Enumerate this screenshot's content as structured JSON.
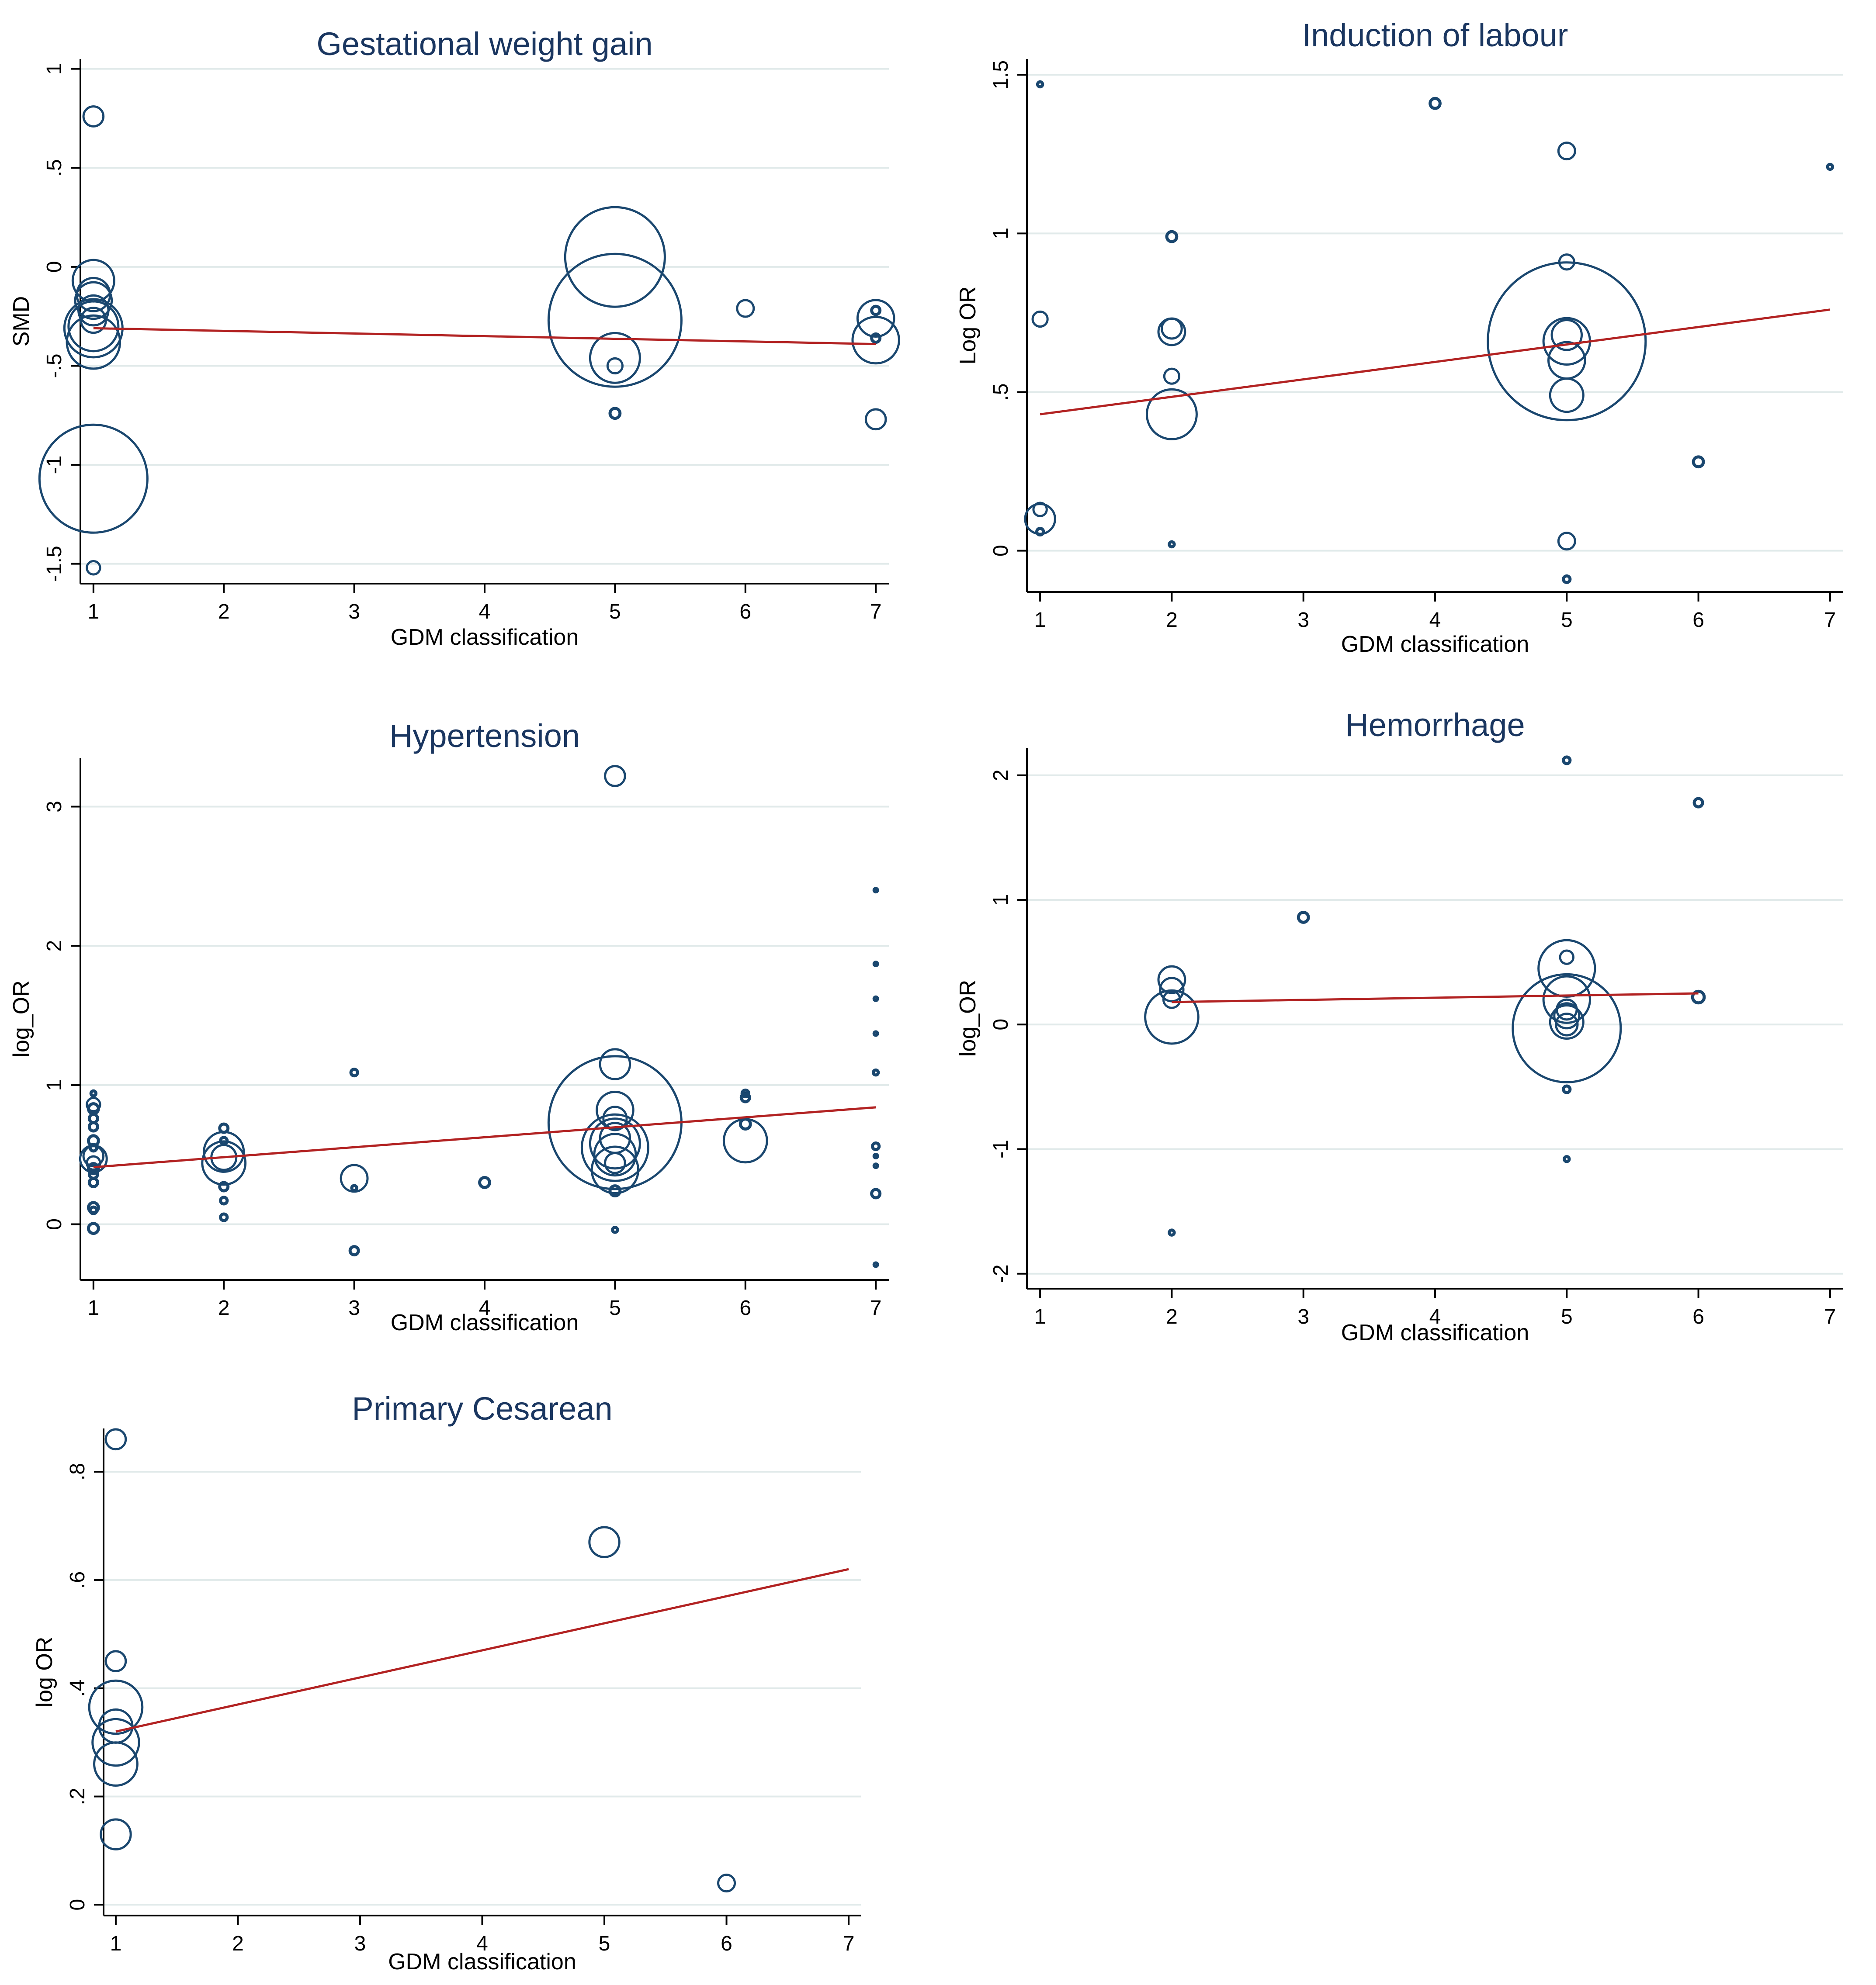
{
  "colors": {
    "marker": "#1a476f",
    "fit": "#b22222",
    "grid": "#e1eaea",
    "title": "#1a3660"
  },
  "chart_data": [
    {
      "type": "scatter",
      "title": "Gestational weight gain",
      "xlabel": "GDM classification",
      "ylabel": "SMD",
      "xlim": [
        0.9,
        7.1
      ],
      "ylim": [
        -1.6,
        1.05
      ],
      "xticks": [
        1,
        2,
        3,
        4,
        5,
        6,
        7
      ],
      "xtick_labels": [
        "1",
        "2",
        "3",
        "4",
        "5",
        "6",
        "7"
      ],
      "yticks": [
        -1.5,
        -1,
        -0.5,
        0,
        0.5,
        1
      ],
      "ytick_labels": [
        "-1.5",
        "-1",
        "-.5",
        "0",
        ".5",
        "1"
      ],
      "fit": {
        "x": [
          1,
          7
        ],
        "y": [
          -0.31,
          -0.39
        ]
      },
      "points": [
        {
          "x": 1,
          "y": 0.76,
          "w": 1.2
        },
        {
          "x": 1,
          "y": -0.07,
          "w": 2.5
        },
        {
          "x": 1,
          "y": -0.14,
          "w": 2.0
        },
        {
          "x": 1,
          "y": -0.17,
          "w": 2.2
        },
        {
          "x": 1,
          "y": -0.22,
          "w": 1.8
        },
        {
          "x": 1,
          "y": -0.27,
          "w": 1.5
        },
        {
          "x": 1,
          "y": -0.3,
          "w": 3.0
        },
        {
          "x": 1,
          "y": -0.31,
          "w": 3.5
        },
        {
          "x": 1,
          "y": -0.38,
          "w": 3.2
        },
        {
          "x": 1,
          "y": -1.07,
          "w": 6.5
        },
        {
          "x": 1,
          "y": -1.52,
          "w": 0.8
        },
        {
          "x": 5,
          "y": 0.05,
          "w": 6.0
        },
        {
          "x": 5,
          "y": -0.27,
          "w": 8.0
        },
        {
          "x": 5,
          "y": -0.46,
          "w": 3.0
        },
        {
          "x": 5,
          "y": -0.5,
          "w": 0.9
        },
        {
          "x": 5,
          "y": -0.74,
          "w": 0.6
        },
        {
          "x": 6,
          "y": -0.21,
          "w": 1.0
        },
        {
          "x": 7,
          "y": -0.22,
          "w": 0.5
        },
        {
          "x": 7,
          "y": -0.26,
          "w": 2.2
        },
        {
          "x": 7,
          "y": -0.36,
          "w": 0.5
        },
        {
          "x": 7,
          "y": -0.37,
          "w": 2.8
        },
        {
          "x": 7,
          "y": -0.77,
          "w": 1.2
        }
      ]
    },
    {
      "type": "scatter",
      "title": "Induction of labour",
      "xlabel": "GDM classification",
      "ylabel": "Log OR",
      "xlim": [
        0.9,
        7.1
      ],
      "ylim": [
        -0.13,
        1.55
      ],
      "xticks": [
        1,
        2,
        3,
        4,
        5,
        6,
        7
      ],
      "xtick_labels": [
        "1",
        "2",
        "3",
        "4",
        "5",
        "6",
        "7"
      ],
      "yticks": [
        0,
        0.5,
        1,
        1.5
      ],
      "ytick_labels": [
        "0",
        ".5",
        "1",
        "1.5"
      ],
      "fit": {
        "x": [
          1,
          7
        ],
        "y": [
          0.43,
          0.76
        ]
      },
      "points": [
        {
          "x": 1,
          "y": 1.47,
          "w": 0.3
        },
        {
          "x": 1,
          "y": 0.73,
          "w": 0.9
        },
        {
          "x": 1,
          "y": 0.13,
          "w": 0.8
        },
        {
          "x": 1,
          "y": 0.1,
          "w": 1.8
        },
        {
          "x": 1,
          "y": 0.06,
          "w": 0.4
        },
        {
          "x": 2,
          "y": 0.99,
          "w": 0.6
        },
        {
          "x": 2,
          "y": 0.7,
          "w": 1.2
        },
        {
          "x": 2,
          "y": 0.69,
          "w": 1.6
        },
        {
          "x": 2,
          "y": 0.55,
          "w": 0.9
        },
        {
          "x": 2,
          "y": 0.43,
          "w": 3.0
        },
        {
          "x": 2,
          "y": 0.02,
          "w": 0.3
        },
        {
          "x": 4,
          "y": 1.41,
          "w": 0.6
        },
        {
          "x": 5,
          "y": 1.26,
          "w": 1.0
        },
        {
          "x": 5,
          "y": 0.91,
          "w": 0.9
        },
        {
          "x": 5,
          "y": 0.68,
          "w": 1.8
        },
        {
          "x": 5,
          "y": 0.66,
          "w": 2.8
        },
        {
          "x": 5,
          "y": 0.66,
          "w": 9.5
        },
        {
          "x": 5,
          "y": 0.6,
          "w": 2.2
        },
        {
          "x": 5,
          "y": 0.49,
          "w": 2.0
        },
        {
          "x": 5,
          "y": 0.03,
          "w": 1.0
        },
        {
          "x": 5,
          "y": -0.09,
          "w": 0.4
        },
        {
          "x": 6,
          "y": 0.28,
          "w": 0.6
        },
        {
          "x": 7,
          "y": 1.21,
          "w": 0.3
        }
      ]
    },
    {
      "type": "scatter",
      "title": "Hypertension",
      "xlabel": "GDM classification",
      "ylabel": "log_OR",
      "xlim": [
        0.9,
        7.1
      ],
      "ylim": [
        -0.4,
        3.35
      ],
      "xticks": [
        1,
        2,
        3,
        4,
        5,
        6,
        7
      ],
      "xtick_labels": [
        "1",
        "2",
        "3",
        "4",
        "5",
        "6",
        "7"
      ],
      "yticks": [
        0,
        1,
        2,
        3
      ],
      "ytick_labels": [
        "0",
        "1",
        "2",
        "3"
      ],
      "fit": {
        "x": [
          1,
          7
        ],
        "y": [
          0.41,
          0.84
        ]
      },
      "points": [
        {
          "x": 1,
          "y": 0.94,
          "w": 0.3
        },
        {
          "x": 1,
          "y": 0.86,
          "w": 0.8
        },
        {
          "x": 1,
          "y": 0.83,
          "w": 0.6
        },
        {
          "x": 1,
          "y": 0.76,
          "w": 0.5
        },
        {
          "x": 1,
          "y": 0.7,
          "w": 0.5
        },
        {
          "x": 1,
          "y": 0.6,
          "w": 0.6
        },
        {
          "x": 1,
          "y": 0.55,
          "w": 0.4
        },
        {
          "x": 1,
          "y": 0.49,
          "w": 1.2
        },
        {
          "x": 1,
          "y": 0.47,
          "w": 1.6
        },
        {
          "x": 1,
          "y": 0.44,
          "w": 0.8
        },
        {
          "x": 1,
          "y": 0.4,
          "w": 0.6
        },
        {
          "x": 1,
          "y": 0.36,
          "w": 0.5
        },
        {
          "x": 1,
          "y": 0.3,
          "w": 0.5
        },
        {
          "x": 1,
          "y": 0.12,
          "w": 0.6
        },
        {
          "x": 1,
          "y": 0.1,
          "w": 0.4
        },
        {
          "x": 1,
          "y": -0.03,
          "w": 0.6
        },
        {
          "x": 2,
          "y": 0.69,
          "w": 0.5
        },
        {
          "x": 2,
          "y": 0.6,
          "w": 0.4
        },
        {
          "x": 2,
          "y": 0.52,
          "w": 2.4
        },
        {
          "x": 2,
          "y": 0.48,
          "w": 1.5
        },
        {
          "x": 2,
          "y": 0.44,
          "w": 2.6
        },
        {
          "x": 2,
          "y": 0.27,
          "w": 0.5
        },
        {
          "x": 2,
          "y": 0.17,
          "w": 0.4
        },
        {
          "x": 2,
          "y": 0.05,
          "w": 0.4
        },
        {
          "x": 3,
          "y": 1.09,
          "w": 0.4
        },
        {
          "x": 3,
          "y": 0.33,
          "w": 1.6
        },
        {
          "x": 3,
          "y": 0.26,
          "w": 0.3
        },
        {
          "x": 3,
          "y": -0.19,
          "w": 0.5
        },
        {
          "x": 4,
          "y": 0.3,
          "w": 0.6
        },
        {
          "x": 5,
          "y": 3.22,
          "w": 1.2
        },
        {
          "x": 5,
          "y": 1.15,
          "w": 1.8
        },
        {
          "x": 5,
          "y": 0.82,
          "w": 2.2
        },
        {
          "x": 5,
          "y": 0.76,
          "w": 1.4
        },
        {
          "x": 5,
          "y": 0.73,
          "w": 8.0
        },
        {
          "x": 5,
          "y": 0.62,
          "w": 1.8
        },
        {
          "x": 5,
          "y": 0.58,
          "w": 3.0
        },
        {
          "x": 5,
          "y": 0.55,
          "w": 4.0
        },
        {
          "x": 5,
          "y": 0.5,
          "w": 2.5
        },
        {
          "x": 5,
          "y": 0.44,
          "w": 1.2
        },
        {
          "x": 5,
          "y": 0.39,
          "w": 2.8
        },
        {
          "x": 5,
          "y": 0.24,
          "w": 0.6
        },
        {
          "x": 5,
          "y": -0.04,
          "w": 0.3
        },
        {
          "x": 6,
          "y": 0.94,
          "w": 0.4
        },
        {
          "x": 6,
          "y": 0.91,
          "w": 0.5
        },
        {
          "x": 6,
          "y": 0.72,
          "w": 0.6
        },
        {
          "x": 6,
          "y": 0.6,
          "w": 2.6
        },
        {
          "x": 7,
          "y": 2.4,
          "w": 0.2
        },
        {
          "x": 7,
          "y": 1.87,
          "w": 0.2
        },
        {
          "x": 7,
          "y": 1.62,
          "w": 0.2
        },
        {
          "x": 7,
          "y": 1.37,
          "w": 0.2
        },
        {
          "x": 7,
          "y": 1.09,
          "w": 0.3
        },
        {
          "x": 7,
          "y": 0.56,
          "w": 0.4
        },
        {
          "x": 7,
          "y": 0.49,
          "w": 0.2
        },
        {
          "x": 7,
          "y": 0.42,
          "w": 0.2
        },
        {
          "x": 7,
          "y": 0.22,
          "w": 0.5
        },
        {
          "x": 7,
          "y": -0.29,
          "w": 0.2
        }
      ]
    },
    {
      "type": "scatter",
      "title": "Hemorrhage",
      "xlabel": "GDM classification",
      "ylabel": "log_OR",
      "xlim": [
        0.9,
        7.1
      ],
      "ylim": [
        -2.12,
        2.22
      ],
      "xticks": [
        1,
        2,
        3,
        4,
        5,
        6,
        7
      ],
      "xtick_labels": [
        "1",
        "2",
        "3",
        "4",
        "5",
        "6",
        "7"
      ],
      "yticks": [
        -2,
        -1,
        0,
        1,
        2
      ],
      "ytick_labels": [
        "-2",
        "-1",
        "0",
        "1",
        "2"
      ],
      "fit": {
        "x": [
          2,
          6
        ],
        "y": [
          0.18,
          0.25
        ]
      },
      "points": [
        {
          "x": 2,
          "y": 0.36,
          "w": 1.6
        },
        {
          "x": 2,
          "y": 0.28,
          "w": 1.4
        },
        {
          "x": 2,
          "y": 0.2,
          "w": 1.0
        },
        {
          "x": 2,
          "y": 0.06,
          "w": 3.2
        },
        {
          "x": 2,
          "y": -1.67,
          "w": 0.3
        },
        {
          "x": 3,
          "y": 0.86,
          "w": 0.6
        },
        {
          "x": 5,
          "y": 2.12,
          "w": 0.4
        },
        {
          "x": 5,
          "y": 0.54,
          "w": 0.8
        },
        {
          "x": 5,
          "y": 0.45,
          "w": 3.4
        },
        {
          "x": 5,
          "y": 0.2,
          "w": 2.8
        },
        {
          "x": 5,
          "y": 0.12,
          "w": 1.2
        },
        {
          "x": 5,
          "y": 0.07,
          "w": 1.5
        },
        {
          "x": 5,
          "y": 0.02,
          "w": 2.0
        },
        {
          "x": 5,
          "y": 0.0,
          "w": 1.3
        },
        {
          "x": 5,
          "y": -0.03,
          "w": 6.5
        },
        {
          "x": 5,
          "y": -0.52,
          "w": 0.4
        },
        {
          "x": 5,
          "y": -1.08,
          "w": 0.3
        },
        {
          "x": 6,
          "y": 1.78,
          "w": 0.5
        },
        {
          "x": 6,
          "y": 0.22,
          "w": 0.7
        }
      ]
    },
    {
      "type": "scatter",
      "title": "Primary Cesarean",
      "xlabel": "GDM classification",
      "ylabel": "log OR",
      "xlim": [
        0.9,
        7.1
      ],
      "ylim": [
        -0.02,
        0.88
      ],
      "xticks": [
        1,
        2,
        3,
        4,
        5,
        6,
        7
      ],
      "xtick_labels": [
        "1",
        "2",
        "3",
        "4",
        "5",
        "6",
        "7"
      ],
      "yticks": [
        0,
        0.2,
        0.4,
        0.6,
        0.8
      ],
      "ytick_labels": [
        "0",
        ".2",
        ".4",
        ".6",
        ".8"
      ],
      "fit": {
        "x": [
          1,
          7
        ],
        "y": [
          0.32,
          0.62
        ]
      },
      "points": [
        {
          "x": 1,
          "y": 0.86,
          "w": 1.2
        },
        {
          "x": 1,
          "y": 0.45,
          "w": 1.2
        },
        {
          "x": 1,
          "y": 0.365,
          "w": 3.2
        },
        {
          "x": 1,
          "y": 0.33,
          "w": 2.0
        },
        {
          "x": 1,
          "y": 0.3,
          "w": 2.8
        },
        {
          "x": 1,
          "y": 0.26,
          "w": 2.6
        },
        {
          "x": 1,
          "y": 0.13,
          "w": 1.8
        },
        {
          "x": 5,
          "y": 0.67,
          "w": 1.8
        },
        {
          "x": 6,
          "y": 0.04,
          "w": 1.0
        }
      ]
    }
  ]
}
